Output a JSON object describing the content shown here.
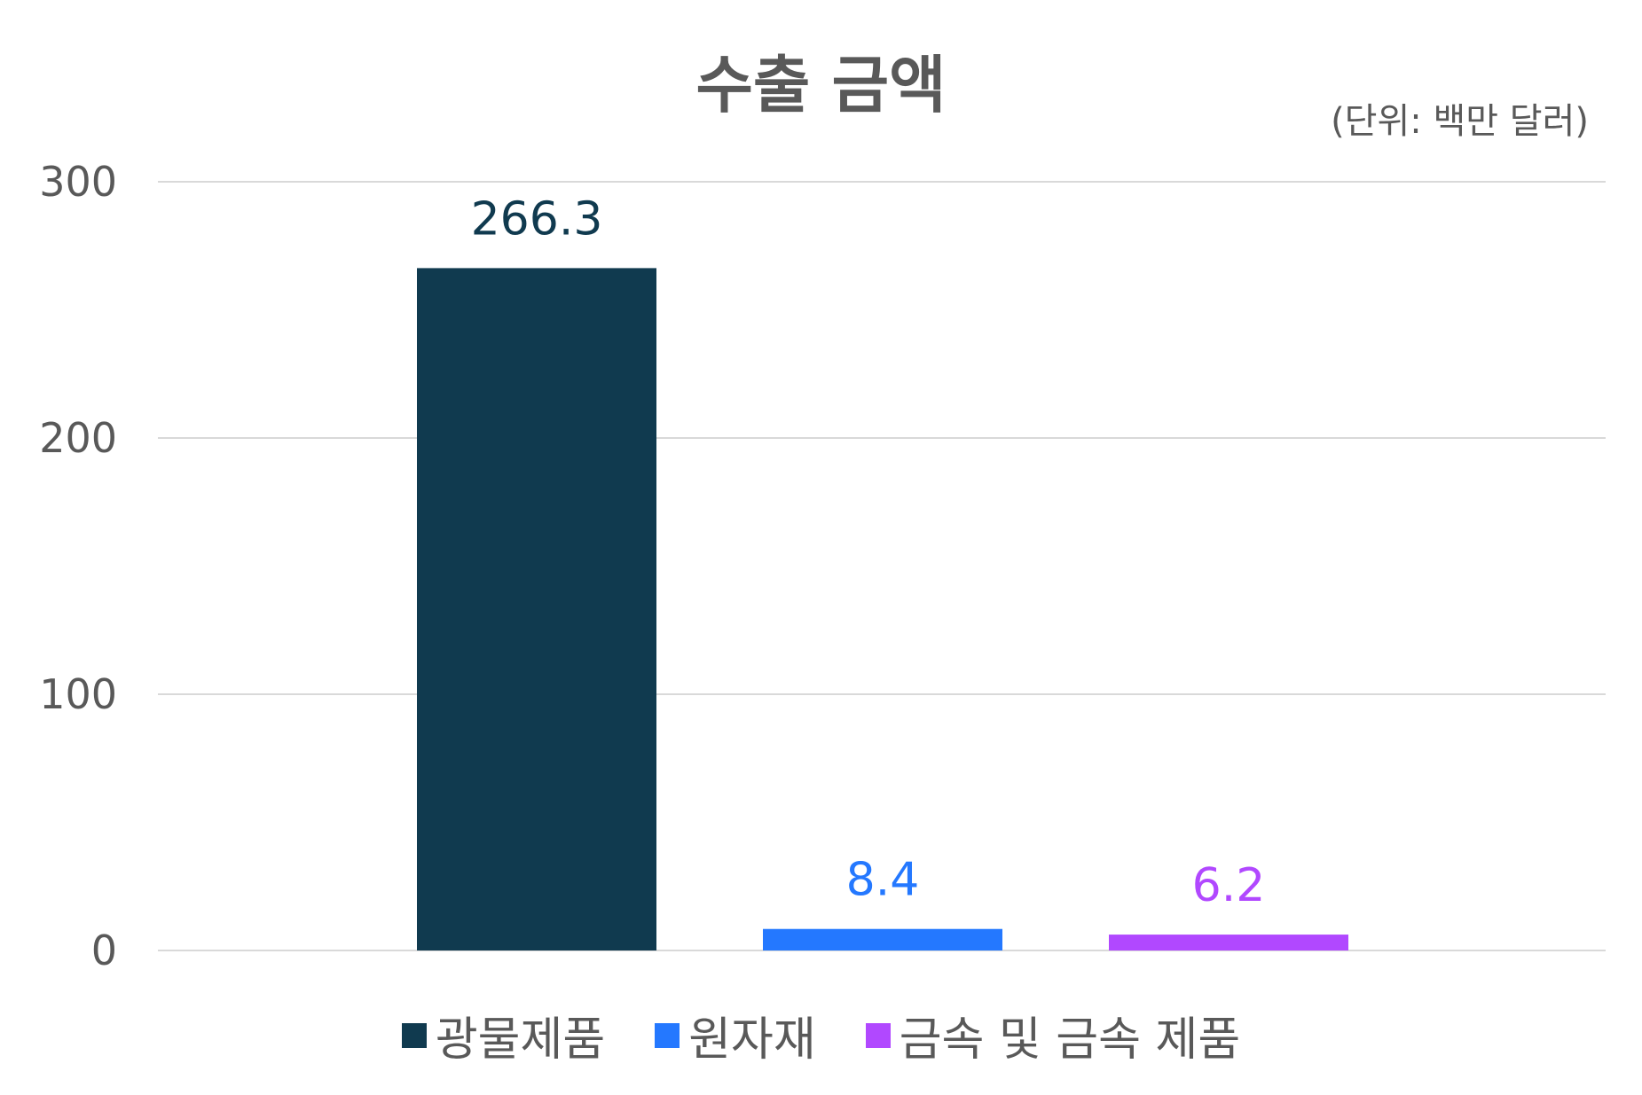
{
  "chart_data": {
    "type": "bar",
    "title": "수출 금액",
    "unit_note": "(단위: 백만 달러)",
    "categories": [
      "광물제품",
      "원자재",
      "금속 및 금속 제품"
    ],
    "values": [
      266.3,
      8.4,
      6.2
    ],
    "data_labels": [
      "266.3",
      "8.4",
      "6.2"
    ],
    "colors": [
      "#103A4F",
      "#2478FF",
      "#B148FF"
    ],
    "ylim": [
      0,
      300
    ],
    "yticks": [
      0,
      100,
      200,
      300
    ],
    "ytick_labels": [
      "0",
      "100",
      "200",
      "300"
    ],
    "grid": true,
    "legend": {
      "position": "bottom",
      "entries": [
        "광물제품",
        "원자재",
        "금속 및 금속 제품"
      ]
    }
  }
}
